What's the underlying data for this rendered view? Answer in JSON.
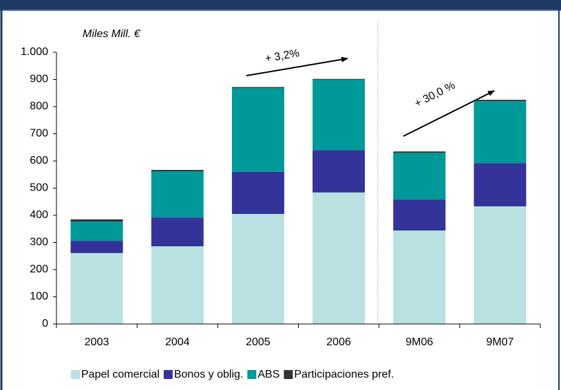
{
  "chart_data": {
    "type": "stacked_bar",
    "ylabel": "Miles Mill. €",
    "categories": [
      "2003",
      "2004",
      "2005",
      "2006",
      "9M06",
      "9M07"
    ],
    "series": [
      {
        "name": "Papel comercial",
        "color": "#b9e1e2",
        "values": [
          261,
          286,
          405,
          484,
          344,
          433
        ]
      },
      {
        "name": "Bonos y oblig.",
        "color": "#333399",
        "values": [
          45,
          106,
          155,
          156,
          114,
          159
        ]
      },
      {
        "name": "ABS",
        "color": "#009999",
        "values": [
          71,
          170,
          308,
          259,
          172,
          228
        ]
      },
      {
        "name": "Participaciones pref.",
        "color": "#333333",
        "values": [
          8,
          5,
          4,
          3,
          5,
          5
        ]
      }
    ],
    "ylim": [
      0,
      1000
    ],
    "yticks": [
      0,
      100,
      200,
      300,
      400,
      500,
      600,
      700,
      800,
      900,
      {
        "value": 1000,
        "label": "1.000"
      }
    ],
    "annotations": [
      "+ 3,2%",
      "+ 30,0 %"
    ]
  }
}
